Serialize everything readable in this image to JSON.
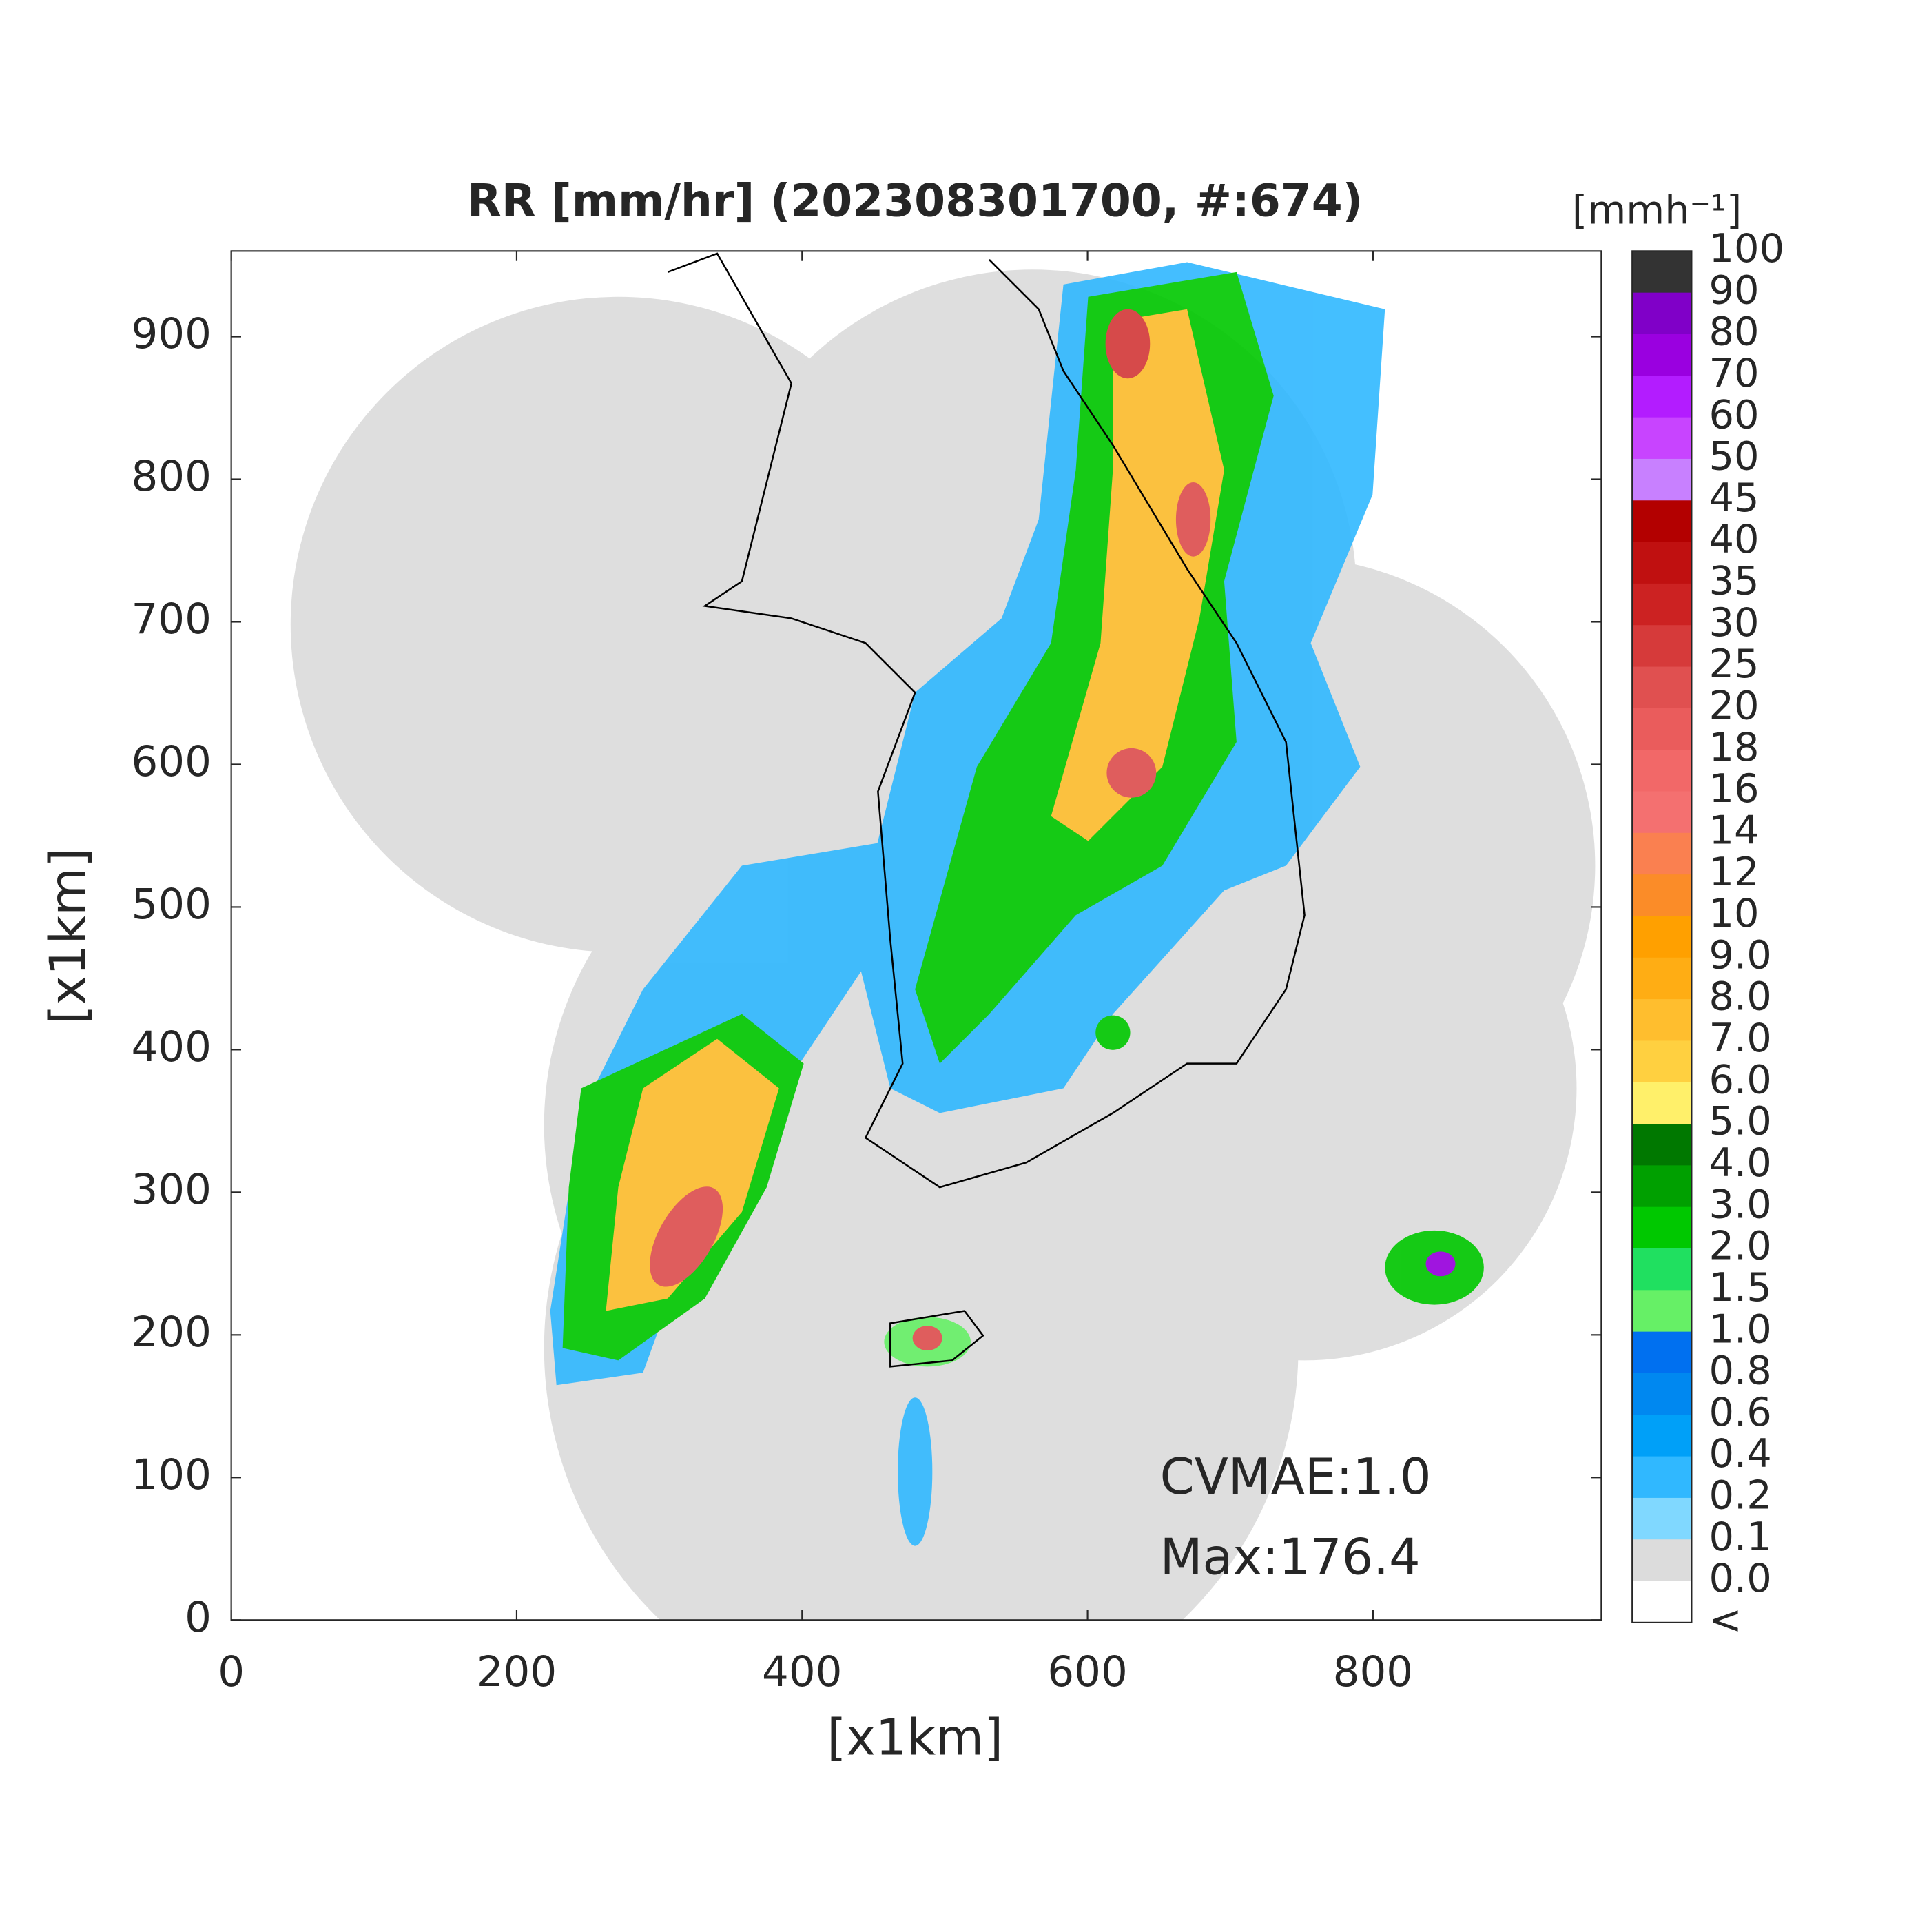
{
  "chart_data": {
    "type": "heatmap",
    "title": "RR [mm/hr] (202308301700, #:674)",
    "x_label": "[x1km]",
    "y_label": "[x1km]",
    "xlim": [
      0,
      960
    ],
    "ylim": [
      0,
      960
    ],
    "xticks": [
      0,
      200,
      400,
      600,
      800
    ],
    "yticks": [
      0,
      100,
      200,
      300,
      400,
      500,
      600,
      700,
      800,
      900
    ],
    "annotations": [
      "CVMAE:1.0",
      "Max:176.4"
    ],
    "colorbar": {
      "unit": "[mmh⁻¹]",
      "labels": [
        "100",
        "90",
        "80",
        "70",
        "60",
        "50",
        "45",
        "40",
        "35",
        "30",
        "25",
        "20",
        "18",
        "16",
        "14",
        "12",
        "10",
        "9.0",
        "8.0",
        "7.0",
        "6.0",
        "5.0",
        "4.0",
        "3.0",
        "2.0",
        "1.5",
        "1.0",
        "0.8",
        "0.6",
        "0.4",
        "0.2",
        "0.1",
        "0.0",
        "<"
      ],
      "colors": [
        "#333333",
        "#8000c8",
        "#9a00e0",
        "#b31cff",
        "#c844ff",
        "#c880ff",
        "#b30000",
        "#c01010",
        "#cc2222",
        "#d63a3a",
        "#e05050",
        "#ea5c5c",
        "#f26868",
        "#f47070",
        "#fa8050",
        "#fb8c28",
        "#ffa000",
        "#ffad14",
        "#ffbe2e",
        "#ffd040",
        "#fff06a",
        "#007800",
        "#00a000",
        "#00c800",
        "#20e060",
        "#66f066",
        "#0070f0",
        "#0088f0",
        "#00a0f8",
        "#30b8ff",
        "#80d8ff",
        "#dcdcdc",
        "#ffffff"
      ]
    }
  }
}
